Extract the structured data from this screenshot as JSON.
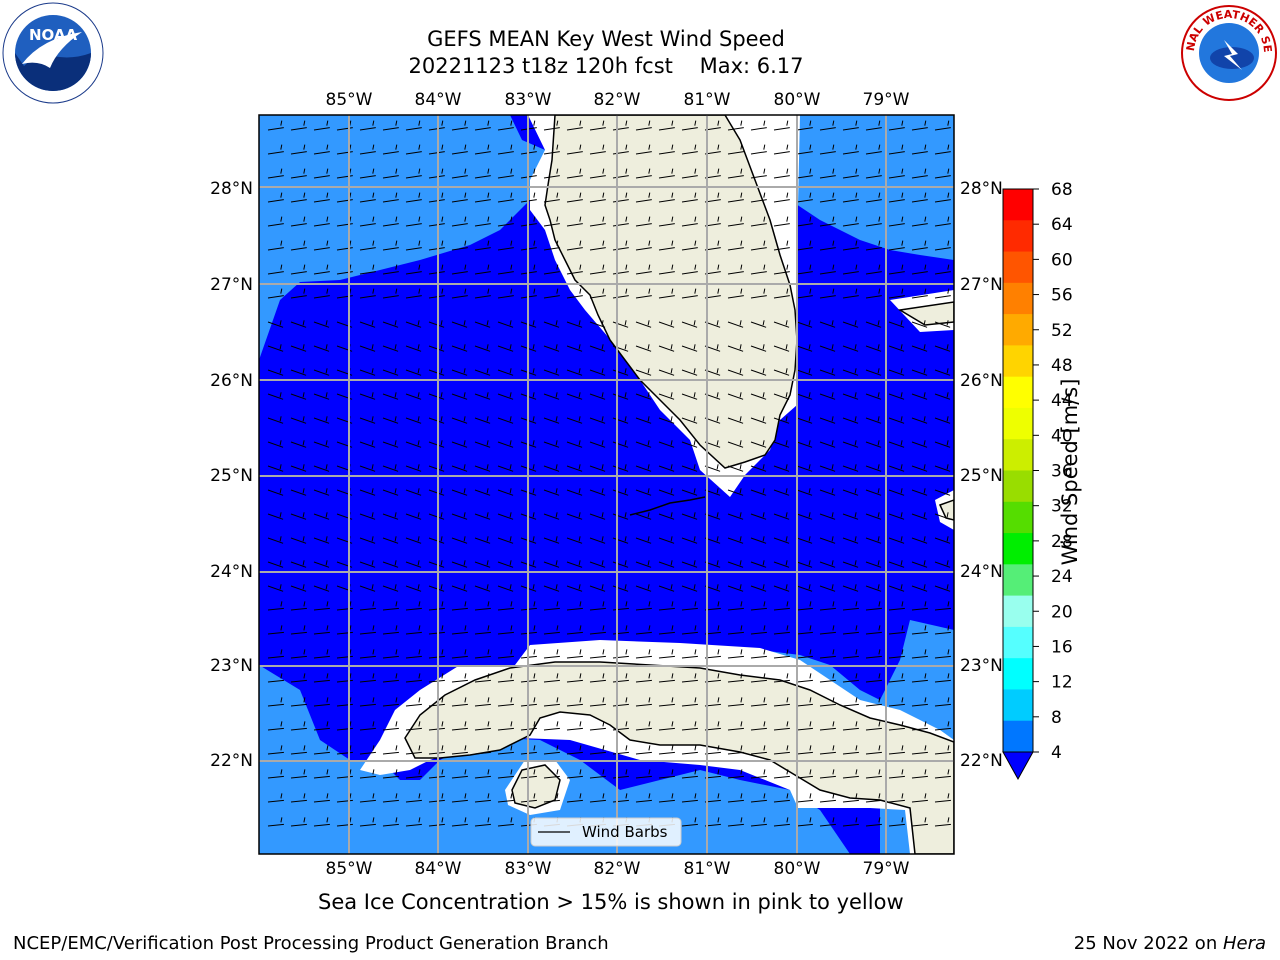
{
  "title": {
    "line1": "GEFS MEAN Key West Wind Speed",
    "line2": "20221123 t18z 120h fcst    Max: 6.17"
  },
  "map": {
    "lon_ticks": [
      "85°W",
      "84°W",
      "83°W",
      "82°W",
      "81°W",
      "80°W",
      "79°W"
    ],
    "lat_ticks": [
      "28°N",
      "27°N",
      "26°N",
      "25°N",
      "24°N",
      "23°N",
      "22°N"
    ],
    "legend_label": "Wind Barbs",
    "colors": {
      "land": "#EEEEDD",
      "wind_4_8": "#3399FF",
      "wind_lt_4": "#0000FF",
      "grid": "#AAAAAA"
    }
  },
  "colorbar": {
    "label": "Wind Speed [m/s]",
    "ticks": [
      "68",
      "64",
      "60",
      "56",
      "52",
      "48",
      "44",
      "40",
      "36",
      "32",
      "28",
      "24",
      "20",
      "16",
      "12",
      "8",
      "4"
    ],
    "colors": [
      "#FF0000",
      "#FF2A00",
      "#FF5500",
      "#FF8000",
      "#FFAA00",
      "#FFD400",
      "#FFFF00",
      "#EEFF00",
      "#CCEE00",
      "#99DD00",
      "#55DD00",
      "#00EE00",
      "#55EE77",
      "#99FFEE",
      "#55FFFF",
      "#00FFFF",
      "#00CCFF",
      "#0077FF"
    ],
    "under_color": "#0000FF"
  },
  "note": "Sea Ice Concentration > 15% is shown in pink to yellow",
  "footer": {
    "left": "NCEP/EMC/Verification Post Processing Product Generation Branch",
    "right_date": "25 Nov 2022 on ",
    "right_machine": "Hera"
  },
  "logos": {
    "left": "NOAA",
    "right_text": "NATIONAL WEATHER SERVICE"
  }
}
